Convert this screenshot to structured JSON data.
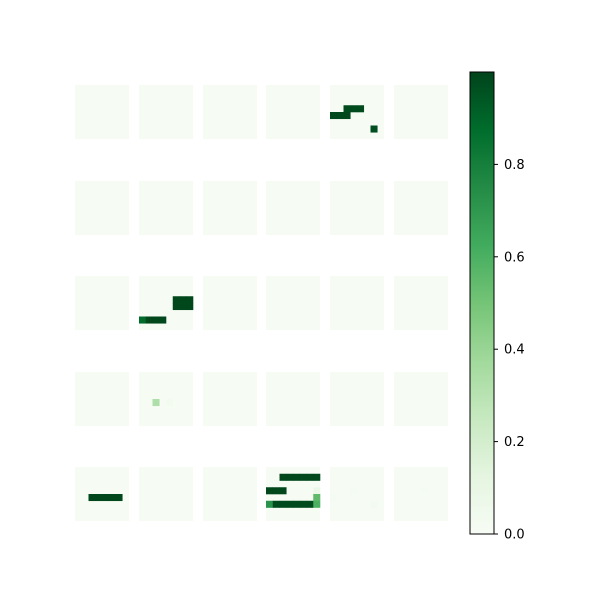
{
  "chart_data": {
    "type": "heatmap",
    "colormap": "Greens",
    "colormap_stops": [
      "#f7fcf5",
      "#e5f5e0",
      "#c7e9c0",
      "#a1d99b",
      "#74c476",
      "#41ab5d",
      "#238b45",
      "#006d2c",
      "#00441b"
    ],
    "value_range": [
      0,
      1
    ],
    "grid": {
      "rows": 5,
      "cols": 6,
      "cell_resolution": 8
    },
    "colorbar": {
      "ticks": [
        0.0,
        0.2,
        0.4,
        0.6,
        0.8
      ],
      "tick_labels": [
        "0.0",
        "0.2",
        "0.4",
        "0.6",
        "0.8"
      ]
    },
    "panels": [
      {
        "row": 0,
        "col": 4,
        "cells": [
          {
            "r": 3,
            "c": 2,
            "v": 0.98
          },
          {
            "r": 3,
            "c": 3,
            "v": 0.98
          },
          {
            "r": 3,
            "c": 4,
            "v": 0.98
          },
          {
            "r": 4,
            "c": 0,
            "v": 0.99
          },
          {
            "r": 4,
            "c": 1,
            "v": 0.99
          },
          {
            "r": 4,
            "c": 2,
            "v": 0.99
          },
          {
            "r": 6,
            "c": 6,
            "v": 0.97
          }
        ]
      },
      {
        "row": 2,
        "col": 1,
        "cells": [
          {
            "r": 3,
            "c": 5,
            "v": 0.99
          },
          {
            "r": 3,
            "c": 6,
            "v": 0.99
          },
          {
            "r": 3,
            "c": 7,
            "v": 0.99
          },
          {
            "r": 4,
            "c": 5,
            "v": 0.99
          },
          {
            "r": 4,
            "c": 6,
            "v": 0.99
          },
          {
            "r": 4,
            "c": 7,
            "v": 0.99
          },
          {
            "r": 6,
            "c": 0,
            "v": 0.88
          },
          {
            "r": 6,
            "c": 1,
            "v": 0.99
          },
          {
            "r": 6,
            "c": 2,
            "v": 0.99
          },
          {
            "r": 6,
            "c": 3,
            "v": 0.99
          }
        ]
      },
      {
        "row": 3,
        "col": 1,
        "cells": [
          {
            "r": 4,
            "c": 2,
            "v": 0.33
          },
          {
            "r": 4,
            "c": 4,
            "v": 0.03
          }
        ]
      },
      {
        "row": 4,
        "col": 0,
        "cells": [
          {
            "r": 4,
            "c": 2,
            "v": 0.99
          },
          {
            "r": 4,
            "c": 3,
            "v": 0.99
          },
          {
            "r": 4,
            "c": 4,
            "v": 0.99
          },
          {
            "r": 4,
            "c": 5,
            "v": 0.99
          },
          {
            "r": 4,
            "c": 6,
            "v": 0.99
          }
        ]
      },
      {
        "row": 4,
        "col": 3,
        "cells": [
          {
            "r": 1,
            "c": 2,
            "v": 0.99
          },
          {
            "r": 1,
            "c": 3,
            "v": 0.99
          },
          {
            "r": 1,
            "c": 4,
            "v": 0.99
          },
          {
            "r": 1,
            "c": 5,
            "v": 0.99
          },
          {
            "r": 1,
            "c": 6,
            "v": 0.99
          },
          {
            "r": 1,
            "c": 7,
            "v": 0.99
          },
          {
            "r": 3,
            "c": 0,
            "v": 0.99
          },
          {
            "r": 3,
            "c": 1,
            "v": 0.99
          },
          {
            "r": 3,
            "c": 2,
            "v": 0.99
          },
          {
            "r": 3,
            "c": 7,
            "v": 0.08
          },
          {
            "r": 4,
            "c": 7,
            "v": 0.55
          },
          {
            "r": 5,
            "c": 0,
            "v": 0.72
          },
          {
            "r": 5,
            "c": 1,
            "v": 0.98
          },
          {
            "r": 5,
            "c": 2,
            "v": 0.98
          },
          {
            "r": 5,
            "c": 3,
            "v": 0.98
          },
          {
            "r": 5,
            "c": 4,
            "v": 0.98
          },
          {
            "r": 5,
            "c": 5,
            "v": 0.98
          },
          {
            "r": 5,
            "c": 6,
            "v": 0.98
          },
          {
            "r": 5,
            "c": 7,
            "v": 0.6
          }
        ]
      },
      {
        "row": 4,
        "col": 4,
        "cells": [
          {
            "r": 4,
            "c": 0,
            "v": 0.02
          },
          {
            "r": 3,
            "c": 3,
            "v": 0.02
          },
          {
            "r": 5,
            "c": 6,
            "v": 0.03
          }
        ]
      },
      {
        "row": 4,
        "col": 5,
        "cells": [
          {
            "r": 3,
            "c": 4,
            "v": 0.02
          },
          {
            "r": 4,
            "c": 1,
            "v": 0.01
          }
        ]
      }
    ],
    "background_value": 0.005
  }
}
